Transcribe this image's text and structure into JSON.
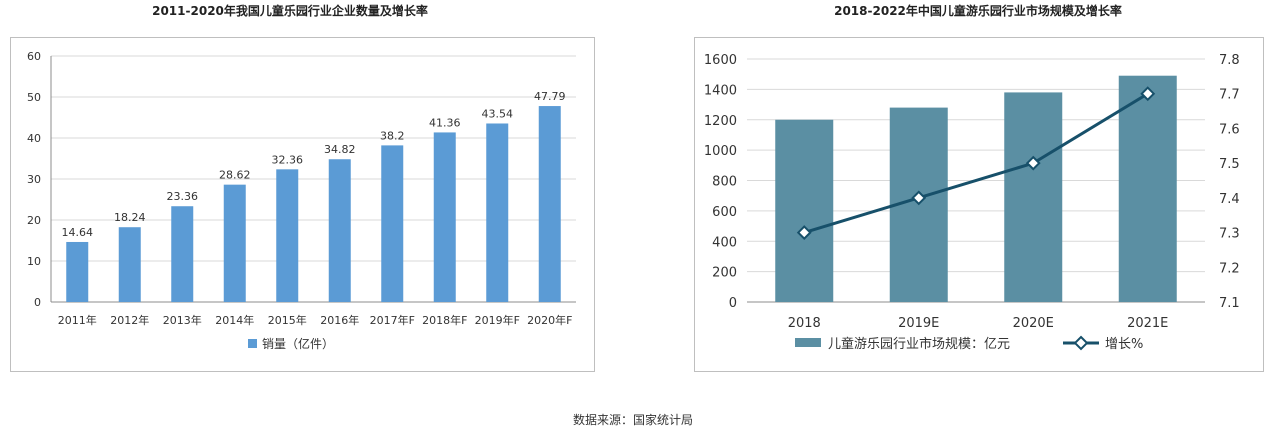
{
  "source_note": "数据来源：国家统计局",
  "chart_data": [
    {
      "type": "bar",
      "title": "2011-2020年我国儿童乐园行业企业数量及增长率",
      "categories": [
        "2011年",
        "2012年",
        "2013年",
        "2014年",
        "2015年",
        "2016年",
        "2017年F",
        "2018年F",
        "2019年F",
        "2020年F"
      ],
      "series": [
        {
          "name": "销量（亿件）",
          "values": [
            14.64,
            18.24,
            23.36,
            28.62,
            32.36,
            34.82,
            38.2,
            41.36,
            43.54,
            47.79
          ],
          "color": "#5b9bd5"
        }
      ],
      "data_labels": [
        "14.64",
        "18.24",
        "23.36",
        "28.62",
        "32.36",
        "34.82",
        "38.2",
        "41.36",
        "43.54",
        "47.79"
      ],
      "ylim": [
        0,
        60
      ],
      "yticks": [
        "0",
        "10",
        "20",
        "30",
        "40",
        "50",
        "60"
      ],
      "grid": true,
      "legend": "bottom"
    },
    {
      "type": "bar+line",
      "title": "2018-2022年中国儿童游乐园行业市场规模及增长率",
      "categories": [
        "2018",
        "2019E",
        "2020E",
        "2021E"
      ],
      "series": [
        {
          "name": "儿童游乐园行业市场规模：亿元",
          "type": "bar",
          "axis": "left",
          "values": [
            1200,
            1280,
            1380,
            1490
          ],
          "color": "#5b8fa3"
        },
        {
          "name": "增长%",
          "type": "line",
          "axis": "right",
          "values": [
            7.3,
            7.4,
            7.5,
            7.7
          ],
          "color": "#17506a"
        }
      ],
      "ylim_left": [
        0,
        1600
      ],
      "yticks_left": [
        "0",
        "200",
        "400",
        "600",
        "800",
        "1000",
        "1200",
        "1400",
        "1600"
      ],
      "ylim_right": [
        7.1,
        7.8
      ],
      "yticks_right": [
        "7.1",
        "7.2",
        "7.3",
        "7.4",
        "7.5",
        "7.6",
        "7.7",
        "7.8"
      ],
      "grid": true,
      "legend": "bottom"
    }
  ]
}
